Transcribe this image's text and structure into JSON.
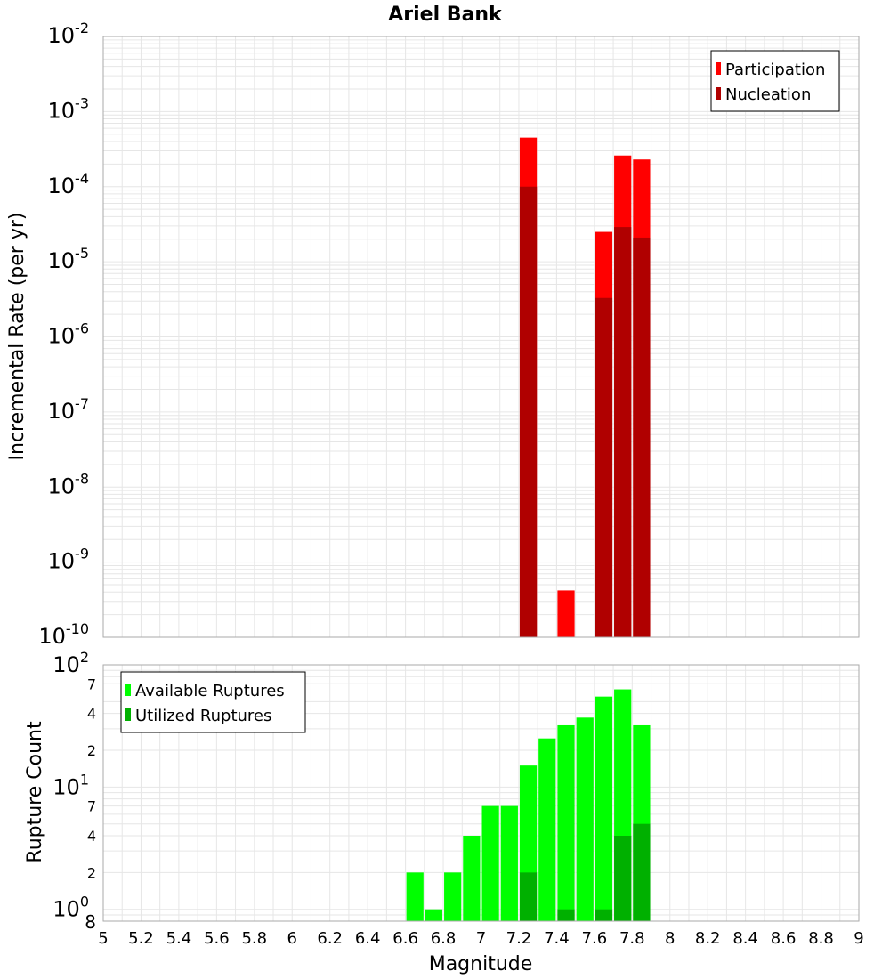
{
  "chart_data": [
    {
      "type": "bar",
      "title": "Ariel Bank",
      "xlabel": "Magnitude",
      "ylabel": "Incremental Rate (per yr)",
      "yscale": "log",
      "xlim": [
        5,
        9
      ],
      "ylim": [
        1e-10,
        0.01
      ],
      "bin_width": 0.1,
      "x_ticks": [
        "5",
        "5.2",
        "5.4",
        "5.6",
        "5.8",
        "6",
        "6.2",
        "6.4",
        "6.6",
        "6.8",
        "7",
        "7.2",
        "7.4",
        "7.6",
        "7.8",
        "8",
        "8.2",
        "8.4",
        "8.6",
        "8.8",
        "9"
      ],
      "y_ticks": [
        {
          "base": "10",
          "exp": "-10"
        },
        {
          "base": "10",
          "exp": "-9"
        },
        {
          "base": "10",
          "exp": "-8"
        },
        {
          "base": "10",
          "exp": "-7"
        },
        {
          "base": "10",
          "exp": "-6"
        },
        {
          "base": "10",
          "exp": "-5"
        },
        {
          "base": "10",
          "exp": "-4"
        },
        {
          "base": "10",
          "exp": "-3"
        },
        {
          "base": "10",
          "exp": "-2"
        }
      ],
      "legend_position": "top-right",
      "series": [
        {
          "name": "Participation",
          "color": "#ff0000",
          "points": [
            [
              7.25,
              0.00045
            ],
            [
              7.45,
              4.2e-10
            ],
            [
              7.65,
              2.5e-05
            ],
            [
              7.75,
              0.00026
            ],
            [
              7.85,
              0.00023
            ]
          ]
        },
        {
          "name": "Nucleation",
          "color": "#b00000",
          "points": [
            [
              7.25,
              0.0001
            ],
            [
              7.65,
              3.3e-06
            ],
            [
              7.75,
              2.9e-05
            ],
            [
              7.85,
              2.1e-05
            ]
          ]
        }
      ],
      "grid": true
    },
    {
      "type": "bar",
      "xlabel": "Magnitude",
      "ylabel": "Rupture Count",
      "yscale": "log",
      "xlim": [
        5,
        9
      ],
      "ylim": [
        0.8,
        100
      ],
      "bin_width": 0.1,
      "y_major_ticks": [
        {
          "base": "10",
          "exp": "0"
        },
        {
          "base": "10",
          "exp": "1"
        },
        {
          "base": "10",
          "exp": "2"
        }
      ],
      "y_minor_ticks": [
        {
          "value": 0.8,
          "label": "8"
        },
        {
          "value": 2,
          "label": "2"
        },
        {
          "value": 4,
          "label": "4"
        },
        {
          "value": 7,
          "label": "7"
        },
        {
          "value": 20,
          "label": "2"
        },
        {
          "value": 40,
          "label": "4"
        },
        {
          "value": 70,
          "label": "7"
        }
      ],
      "legend_position": "top-left",
      "series": [
        {
          "name": "Available Ruptures",
          "color": "#00ff00",
          "points": [
            [
              6.65,
              2
            ],
            [
              6.75,
              1
            ],
            [
              6.85,
              2
            ],
            [
              6.95,
              4
            ],
            [
              7.05,
              7
            ],
            [
              7.15,
              7
            ],
            [
              7.25,
              15
            ],
            [
              7.35,
              25
            ],
            [
              7.45,
              32
            ],
            [
              7.55,
              37
            ],
            [
              7.65,
              55
            ],
            [
              7.75,
              63
            ],
            [
              7.85,
              32
            ]
          ]
        },
        {
          "name": "Utilized Ruptures",
          "color": "#00b000",
          "points": [
            [
              7.25,
              2
            ],
            [
              7.45,
              1
            ],
            [
              7.65,
              1
            ],
            [
              7.75,
              4
            ],
            [
              7.85,
              5
            ]
          ]
        }
      ],
      "grid": true
    }
  ]
}
